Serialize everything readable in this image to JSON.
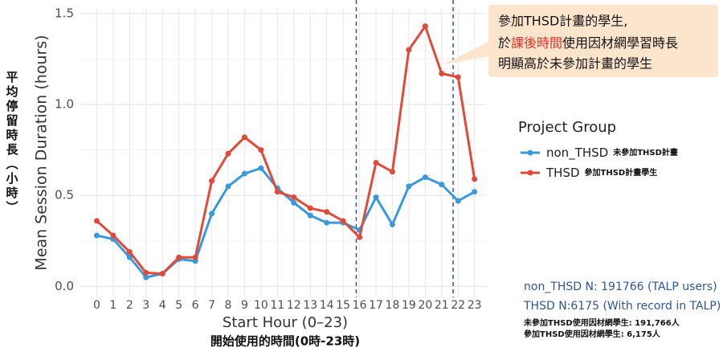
{
  "chart_data": {
    "type": "line",
    "y_label": "Mean Session Duration (hours)",
    "y_label_zh": "平均停留時長（小時）",
    "x_label": "Start Hour (0–23)",
    "x_label_zh": "開始使用的時間(0時-23時)",
    "x": [
      0,
      1,
      2,
      3,
      4,
      5,
      6,
      7,
      8,
      9,
      10,
      11,
      12,
      13,
      14,
      15,
      16,
      17,
      18,
      19,
      20,
      21,
      22,
      23
    ],
    "xticks": [
      0,
      1,
      2,
      3,
      4,
      5,
      6,
      7,
      8,
      9,
      10,
      11,
      12,
      13,
      14,
      15,
      16,
      17,
      18,
      19,
      20,
      21,
      22,
      23
    ],
    "xlim": [
      -1,
      23.7
    ],
    "ylim": [
      -0.06,
      1.53
    ],
    "yticks": [
      {
        "value": 0,
        "label": "0.0"
      },
      {
        "value": 0.5,
        "label": "0.5"
      },
      {
        "value": 1,
        "label": "1.0"
      },
      {
        "value": 1.5,
        "label": "1.5"
      }
    ],
    "yminor": [
      0.25,
      0.75,
      1.25
    ],
    "grid": true,
    "vlines": [
      15.8,
      21.7
    ],
    "vline_color": "#2f5597",
    "legend_title": "Project Group",
    "series": [
      {
        "name": "non_THSD",
        "legend_note": "未參加THSD計畫",
        "color": "#3a9ad9",
        "values": [
          0.28,
          0.26,
          0.16,
          0.05,
          0.07,
          0.15,
          0.14,
          0.4,
          0.55,
          0.62,
          0.65,
          0.54,
          0.46,
          0.39,
          0.35,
          0.35,
          0.31,
          0.49,
          0.34,
          0.55,
          0.6,
          0.56,
          0.47,
          0.52
        ]
      },
      {
        "name": "THSD",
        "legend_note": "參加THSD計畫學生",
        "color": "#e04a3a",
        "values": [
          0.36,
          0.28,
          0.19,
          0.075,
          0.07,
          0.16,
          0.16,
          0.58,
          0.73,
          0.82,
          0.75,
          0.52,
          0.49,
          0.43,
          0.41,
          0.36,
          0.27,
          0.68,
          0.63,
          1.3,
          1.43,
          1.17,
          1.15,
          0.59
        ]
      }
    ],
    "annotation": {
      "line1": "參加THSD計畫的學生,",
      "line2": [
        "於",
        "課後時間",
        "使用因材網學習時長"
      ],
      "line3": "明顯高於未參加計畫的學生"
    },
    "notes": [
      "non_THSD N: 191766 (TALP users)",
      "THSD N:6175 (With record in TALP)"
    ],
    "notes_zh": [
      "未參加THSD使用因材網學生: 191,766人",
      "參加THSD使用因材網學生: 6,175人"
    ]
  }
}
